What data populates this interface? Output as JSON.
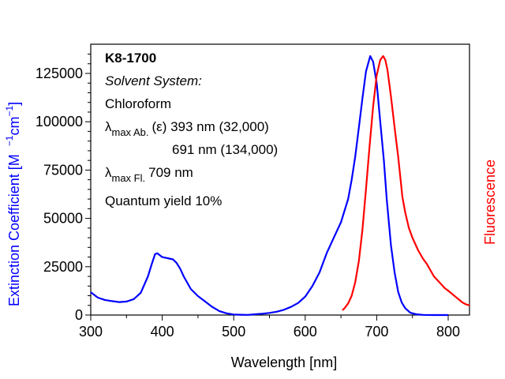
{
  "chart_data": {
    "type": "line",
    "title": "",
    "xlabel": "Wavelength [nm]",
    "ylabel": "Extinction Coefficient [M ⁻¹cm⁻¹]",
    "ylabel_parts": {
      "main": "Extinction Coefficient [M",
      "exp1": "−1",
      "cm": "cm",
      "exp2": "−1",
      "close": "]"
    },
    "y2label": "Fluorescence",
    "xlim": [
      300,
      830
    ],
    "ylim": [
      0,
      137000
    ],
    "xticks": [
      300,
      400,
      500,
      600,
      700,
      800
    ],
    "xtick_labels": [
      "300",
      "400",
      "500",
      "600",
      "700",
      "800"
    ],
    "yticks": [
      0,
      25000,
      50000,
      75000,
      100000,
      125000
    ],
    "ytick_labels": [
      "0",
      "25000",
      "50000",
      "75000",
      "100000",
      "125000"
    ],
    "grid": false,
    "colors": {
      "absorption": "#0000ff",
      "fluorescence": "#ff0000",
      "ylabel": "#0000ff",
      "y2label": "#ff0000"
    },
    "series": [
      {
        "name": "Absorption",
        "color": "#0000ff",
        "x": [
          300,
          310,
          320,
          330,
          340,
          350,
          360,
          370,
          380,
          385,
          390,
          393,
          400,
          410,
          415,
          420,
          425,
          430,
          440,
          450,
          460,
          470,
          480,
          490,
          500,
          510,
          520,
          530,
          540,
          550,
          560,
          570,
          580,
          590,
          600,
          610,
          620,
          630,
          640,
          650,
          660,
          665,
          670,
          675,
          680,
          685,
          691,
          695,
          700,
          705,
          710,
          714,
          720,
          725,
          730,
          735,
          740,
          747,
          755,
          765,
          780,
          800
        ],
        "y": [
          11800,
          9000,
          7800,
          7200,
          6700,
          7000,
          8200,
          11500,
          20000,
          26000,
          31500,
          32000,
          30000,
          29200,
          28800,
          27000,
          24000,
          20000,
          13500,
          9800,
          7000,
          4200,
          2000,
          900,
          300,
          150,
          100,
          400,
          700,
          1100,
          1700,
          2700,
          4200,
          6200,
          9500,
          15000,
          22000,
          32000,
          40000,
          48000,
          60000,
          70000,
          82000,
          97000,
          112000,
          126000,
          134000,
          131000,
          120000,
          100000,
          80000,
          60000,
          36000,
          22000,
          12000,
          6500,
          3500,
          1200,
          400,
          100,
          0,
          0
        ]
      },
      {
        "name": "Fluorescence",
        "color": "#ff0000",
        "x": [
          652,
          655,
          660,
          665,
          670,
          675,
          680,
          685,
          690,
          695,
          700,
          705,
          709,
          712,
          715,
          720,
          725,
          730,
          736,
          740,
          745,
          750,
          758,
          765,
          770,
          780,
          790,
          795,
          802,
          810,
          815,
          820,
          825,
          830
        ],
        "y": [
          2500,
          3500,
          6000,
          10000,
          17000,
          28000,
          44000,
          65000,
          87000,
          108000,
          124000,
          132000,
          134000,
          132000,
          127000,
          113000,
          97000,
          82000,
          61000,
          53000,
          45000,
          40000,
          33500,
          29000,
          26500,
          20000,
          16000,
          14000,
          12000,
          9500,
          8000,
          6500,
          5500,
          5000
        ]
      }
    ],
    "annotations": {
      "compound": "K8-1700",
      "solvent_label": "Solvent System:",
      "solvent": "Chloroform",
      "lambda": "λ",
      "abs_sub": "max Ab.",
      "abs_line1": "(ε) 393 nm (32,000)",
      "abs_line2": "691 nm (134,000)",
      "fl_sub": "max Fl.",
      "fl_value": "709 nm",
      "quantum_yield": "Quantum yield 10%"
    }
  }
}
